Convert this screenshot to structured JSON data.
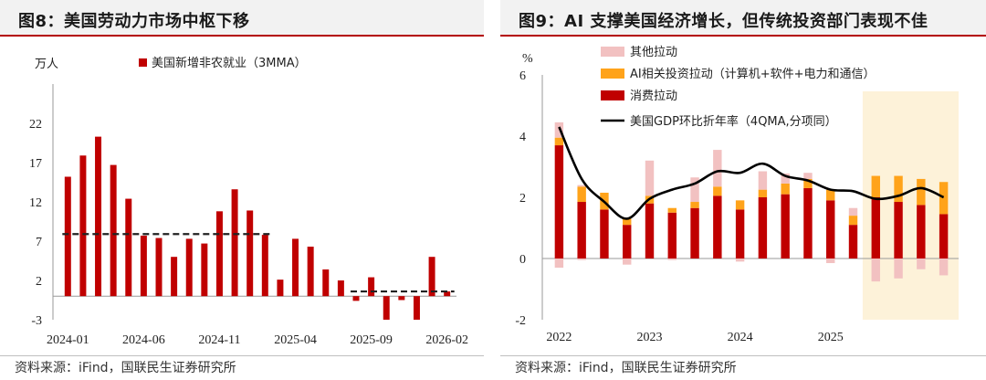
{
  "left": {
    "title": "图8：美国劳动力市场中枢下移",
    "source": "资料来源：iFind，国联民生证券研究所",
    "chart_data": {
      "type": "bar",
      "ylabel": "万人",
      "ylim": [
        -3,
        27
      ],
      "yticks": [
        -3,
        2,
        7,
        12,
        17,
        22
      ],
      "xticks": [
        "2024-01",
        "2024-06",
        "2024-11",
        "2025-04",
        "2025-09",
        "2026-02"
      ],
      "series": [
        {
          "name": "美国新增非农就业（3MMA）",
          "color": "#c00000",
          "values": [
            15.2,
            17.9,
            20.3,
            16.7,
            12.4,
            7.7,
            7.4,
            5.0,
            7.3,
            6.7,
            10.8,
            13.6,
            10.9,
            7.8,
            2.1,
            7.3,
            6.3,
            3.4,
            2.0,
            -0.6,
            2.4,
            -3.0,
            -0.5,
            -3.0,
            5.0,
            0.6
          ]
        }
      ],
      "reference_lines": [
        {
          "from_index": 0,
          "to_index": 13,
          "value": 7.9
        },
        {
          "from_index": 19,
          "to_index": 25,
          "value": 0.6
        }
      ]
    }
  },
  "right": {
    "title": "图9：AI 支撑美国经济增长，但传统投资部门表现不佳",
    "source": "资料来源：iFind，国联民生证券研究所",
    "chart_data": {
      "type": "bar",
      "ylabel": "%",
      "ylim": [
        -2,
        6
      ],
      "yticks": [
        -2,
        0,
        2,
        4,
        6
      ],
      "xticks": [
        "2022",
        "2023",
        "2024",
        "2025"
      ],
      "highlight_from_index": 14,
      "series": [
        {
          "name": "其他拉动",
          "color": "#f2c1c1",
          "pos": [
            0.5,
            0.05,
            0.0,
            0.0,
            1.15,
            0.0,
            0.8,
            1.2,
            0.0,
            0.6,
            0.33,
            0.2,
            0.0,
            0.25,
            0.0,
            0.0,
            0.0,
            0.0
          ],
          "neg": [
            -0.3,
            -0.05,
            0.0,
            -0.2,
            0.0,
            -0.05,
            0.0,
            0.0,
            -0.1,
            0.0,
            0.0,
            0.0,
            -0.15,
            0.0,
            -0.75,
            -0.65,
            -0.35,
            -0.55
          ]
        },
        {
          "name": "AI相关投资拉动（计算机+软件+电力和通信）",
          "color": "#ffa31a",
          "values": [
            0.25,
            0.5,
            0.55,
            0.2,
            0.25,
            0.15,
            0.2,
            0.3,
            0.3,
            0.25,
            0.35,
            0.3,
            0.35,
            0.3,
            0.7,
            0.85,
            0.85,
            1.05
          ]
        },
        {
          "name": "消费拉动",
          "color": "#c00000",
          "values": [
            3.7,
            1.85,
            1.6,
            1.1,
            1.8,
            1.5,
            1.65,
            2.05,
            1.6,
            2.0,
            2.1,
            2.3,
            1.9,
            1.1,
            2.0,
            1.85,
            1.75,
            1.45
          ]
        },
        {
          "name": "美国GDP环比折年率（4QMA,分项同）",
          "color": "#000000",
          "type": "line",
          "values": [
            4.3,
            2.6,
            1.85,
            1.3,
            1.95,
            2.25,
            2.45,
            2.85,
            2.8,
            3.1,
            2.7,
            2.55,
            2.25,
            2.2,
            1.95,
            2.05,
            2.3,
            2.0
          ]
        }
      ]
    }
  }
}
